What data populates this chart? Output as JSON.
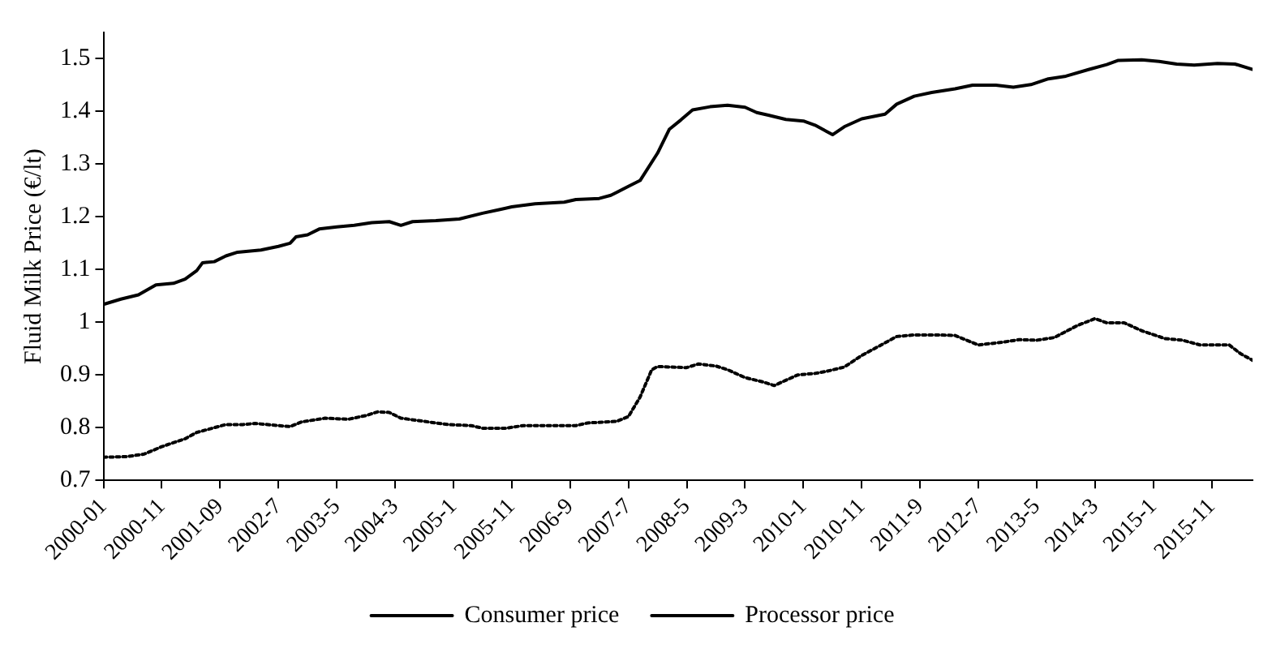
{
  "chart_data": {
    "type": "line",
    "ylabel": "Fluid Milk Price (€/lt)",
    "xlim": [
      "2000-01",
      "2016-06"
    ],
    "ylim": [
      0.7,
      1.55
    ],
    "yticks": [
      0.7,
      0.8,
      0.9,
      1,
      1.1,
      1.2,
      1.3,
      1.4,
      1.5
    ],
    "xticks": [
      {
        "value": "2000-01",
        "label": "2000-01"
      },
      {
        "value": "2000-11",
        "label": "2000-11"
      },
      {
        "value": "2001-09",
        "label": "2001-09"
      },
      {
        "value": "2002-07",
        "label": "2002-7"
      },
      {
        "value": "2003-05",
        "label": "2003-5"
      },
      {
        "value": "2004-03",
        "label": "2004-3"
      },
      {
        "value": "2005-01",
        "label": "2005-1"
      },
      {
        "value": "2005-11",
        "label": "2005-11"
      },
      {
        "value": "2006-09",
        "label": "2006-9"
      },
      {
        "value": "2007-07",
        "label": "2007-7"
      },
      {
        "value": "2008-05",
        "label": "2008-5"
      },
      {
        "value": "2009-03",
        "label": "2009-3"
      },
      {
        "value": "2010-01",
        "label": "2010-1"
      },
      {
        "value": "2010-11",
        "label": "2010-11"
      },
      {
        "value": "2011-09",
        "label": "2011-9"
      },
      {
        "value": "2012-07",
        "label": "2012-7"
      },
      {
        "value": "2013-05",
        "label": "2013-5"
      },
      {
        "value": "2014-03",
        "label": "2014-3"
      },
      {
        "value": "2015-01",
        "label": "2015-1"
      },
      {
        "value": "2015-11",
        "label": "2015-11"
      }
    ],
    "grid": false,
    "legend": "bottom",
    "marker": "none",
    "series": [
      {
        "name": "Consumer price",
        "color": "#000000",
        "line_style": "solid",
        "x": [
          "2000-01",
          "2000-04",
          "2000-07",
          "2000-10",
          "2001-01",
          "2001-03",
          "2001-05",
          "2001-06",
          "2001-08",
          "2001-10",
          "2001-12",
          "2002-04",
          "2002-07",
          "2002-09",
          "2002-10",
          "2002-12",
          "2003-02",
          "2003-05",
          "2003-08",
          "2003-11",
          "2004-02",
          "2004-04",
          "2004-06",
          "2004-10",
          "2005-02",
          "2005-06",
          "2005-09",
          "2005-11",
          "2006-03",
          "2006-08",
          "2006-10",
          "2007-02",
          "2007-04",
          "2007-07",
          "2007-09",
          "2007-12",
          "2008-02",
          "2008-04",
          "2008-06",
          "2008-09",
          "2008-12",
          "2009-03",
          "2009-05",
          "2009-07",
          "2009-10",
          "2010-01",
          "2010-03",
          "2010-06",
          "2010-08",
          "2010-11",
          "2011-03",
          "2011-05",
          "2011-08",
          "2011-11",
          "2012-03",
          "2012-06",
          "2012-10",
          "2013-01",
          "2013-04",
          "2013-07",
          "2013-10",
          "2014-02",
          "2014-05",
          "2014-07",
          "2014-11",
          "2015-02",
          "2015-05",
          "2015-08",
          "2015-12",
          "2016-03",
          "2016-06"
        ],
        "values": [
          1.034,
          1.044,
          1.052,
          1.071,
          1.074,
          1.082,
          1.098,
          1.113,
          1.115,
          1.126,
          1.133,
          1.137,
          1.144,
          1.15,
          1.162,
          1.166,
          1.177,
          1.181,
          1.184,
          1.189,
          1.191,
          1.184,
          1.191,
          1.193,
          1.196,
          1.207,
          1.214,
          1.219,
          1.225,
          1.228,
          1.233,
          1.235,
          1.241,
          1.258,
          1.269,
          1.321,
          1.366,
          1.384,
          1.403,
          1.409,
          1.412,
          1.408,
          1.398,
          1.393,
          1.385,
          1.382,
          1.374,
          1.356,
          1.371,
          1.386,
          1.395,
          1.414,
          1.429,
          1.436,
          1.443,
          1.45,
          1.45,
          1.446,
          1.451,
          1.462,
          1.467,
          1.48,
          1.489,
          1.497,
          1.498,
          1.495,
          1.49,
          1.488,
          1.491,
          1.49,
          1.48
        ]
      },
      {
        "name": "Processor price",
        "color": "#000000",
        "line_style": "dotted",
        "x": [
          "2000-01",
          "2000-05",
          "2000-08",
          "2000-11",
          "2001-03",
          "2001-05",
          "2001-07",
          "2001-10",
          "2002-01",
          "2002-03",
          "2002-07",
          "2002-09",
          "2002-11",
          "2003-03",
          "2003-07",
          "2003-10",
          "2003-12",
          "2004-02",
          "2004-04",
          "2004-08",
          "2004-12",
          "2005-04",
          "2005-06",
          "2005-10",
          "2006-01",
          "2006-06",
          "2006-10",
          "2006-12",
          "2007-05",
          "2007-07",
          "2007-09",
          "2007-11",
          "2007-12",
          "2008-05",
          "2008-07",
          "2008-10",
          "2008-12",
          "2009-03",
          "2009-06",
          "2009-08",
          "2009-12",
          "2010-03",
          "2010-05",
          "2010-08",
          "2010-11",
          "2011-02",
          "2011-05",
          "2011-08",
          "2011-12",
          "2012-03",
          "2012-07",
          "2012-11",
          "2013-02",
          "2013-05",
          "2013-08",
          "2013-12",
          "2014-03",
          "2014-05",
          "2014-08",
          "2014-11",
          "2015-03",
          "2015-06",
          "2015-09",
          "2016-02",
          "2016-04",
          "2016-06"
        ],
        "values": [
          0.744,
          0.745,
          0.75,
          0.764,
          0.779,
          0.791,
          0.797,
          0.806,
          0.806,
          0.808,
          0.804,
          0.802,
          0.811,
          0.818,
          0.816,
          0.823,
          0.83,
          0.829,
          0.818,
          0.812,
          0.806,
          0.804,
          0.799,
          0.799,
          0.804,
          0.804,
          0.804,
          0.809,
          0.812,
          0.821,
          0.858,
          0.91,
          0.916,
          0.914,
          0.921,
          0.917,
          0.91,
          0.895,
          0.887,
          0.88,
          0.9,
          0.903,
          0.907,
          0.915,
          0.937,
          0.955,
          0.973,
          0.976,
          0.976,
          0.975,
          0.957,
          0.962,
          0.967,
          0.966,
          0.971,
          0.994,
          1.007,
          0.999,
          0.999,
          0.984,
          0.969,
          0.966,
          0.957,
          0.957,
          0.94,
          0.928
        ]
      }
    ]
  }
}
